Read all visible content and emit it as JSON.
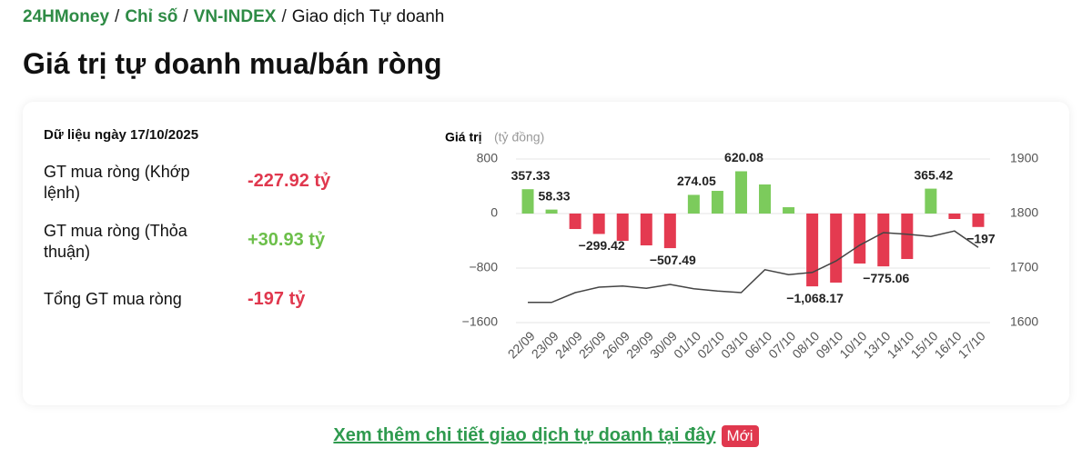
{
  "breadcrumb": {
    "items": [
      "24HMoney",
      "Chỉ số",
      "VN-INDEX",
      "Giao dịch Tự doanh"
    ],
    "separator": "/"
  },
  "title": "Giá trị tự doanh mua/bán ròng",
  "summary": {
    "date_label": "Dữ liệu ngày 17/10/2025",
    "rows": [
      {
        "label": "GT mua ròng (Khớp lệnh)",
        "value": "-227.92 tỷ",
        "color": "#e0384e"
      },
      {
        "label": "GT mua ròng (Thỏa thuận)",
        "value": "+30.93 tỷ",
        "color": "#6cbf4a"
      },
      {
        "label": "Tổng GT mua ròng",
        "value": "-197 tỷ",
        "color": "#e0384e"
      }
    ]
  },
  "chart_data": {
    "type": "bar-line",
    "y_label": "Giá trị",
    "y_unit": "(tỷ đồng)",
    "categories": [
      "22/09",
      "23/09",
      "24/09",
      "25/09",
      "26/09",
      "29/09",
      "30/09",
      "01/10",
      "02/10",
      "03/10",
      "06/10",
      "07/10",
      "08/10",
      "09/10",
      "10/10",
      "13/10",
      "14/10",
      "15/10",
      "16/10",
      "17/10"
    ],
    "series": [
      {
        "type": "bar",
        "positive_color": "#7ccb5c",
        "negative_color": "#e43a50",
        "values": [
          357.33,
          58.33,
          -227,
          -299.42,
          -400,
          -467,
          -507.49,
          274.05,
          333,
          620.08,
          427,
          93,
          -1068.17,
          -1013,
          -733,
          -775.06,
          -667,
          365.42,
          -80,
          -197
        ],
        "value_labels": [
          "357.33",
          "58.33",
          null,
          "−299.42",
          null,
          null,
          "−507.49",
          "274.05",
          null,
          "620.08",
          null,
          null,
          "−1,068.17",
          null,
          null,
          "−775.06",
          null,
          "365.42",
          null,
          "−197"
        ]
      },
      {
        "type": "line",
        "axis": "y2",
        "color": "#444444",
        "values": [
          1637,
          1637,
          1655,
          1665,
          1667,
          1663,
          1670,
          1662,
          1658,
          1655,
          1697,
          1688,
          1692,
          1713,
          1742,
          1765,
          1762,
          1758,
          1768,
          1738
        ]
      }
    ],
    "ylim": [
      -1600,
      800
    ],
    "yticks": [
      {
        "value": -1600,
        "label": "−1600"
      },
      {
        "value": -800,
        "label": "−800"
      },
      0,
      800
    ],
    "y2lim": [
      1600,
      1900
    ],
    "y2ticks": [
      1600,
      1700,
      1800,
      1900
    ],
    "grid": true
  },
  "footer": {
    "link": "Xem thêm chi tiết giao dịch tự doanh tại đây",
    "badge": "Mới"
  }
}
